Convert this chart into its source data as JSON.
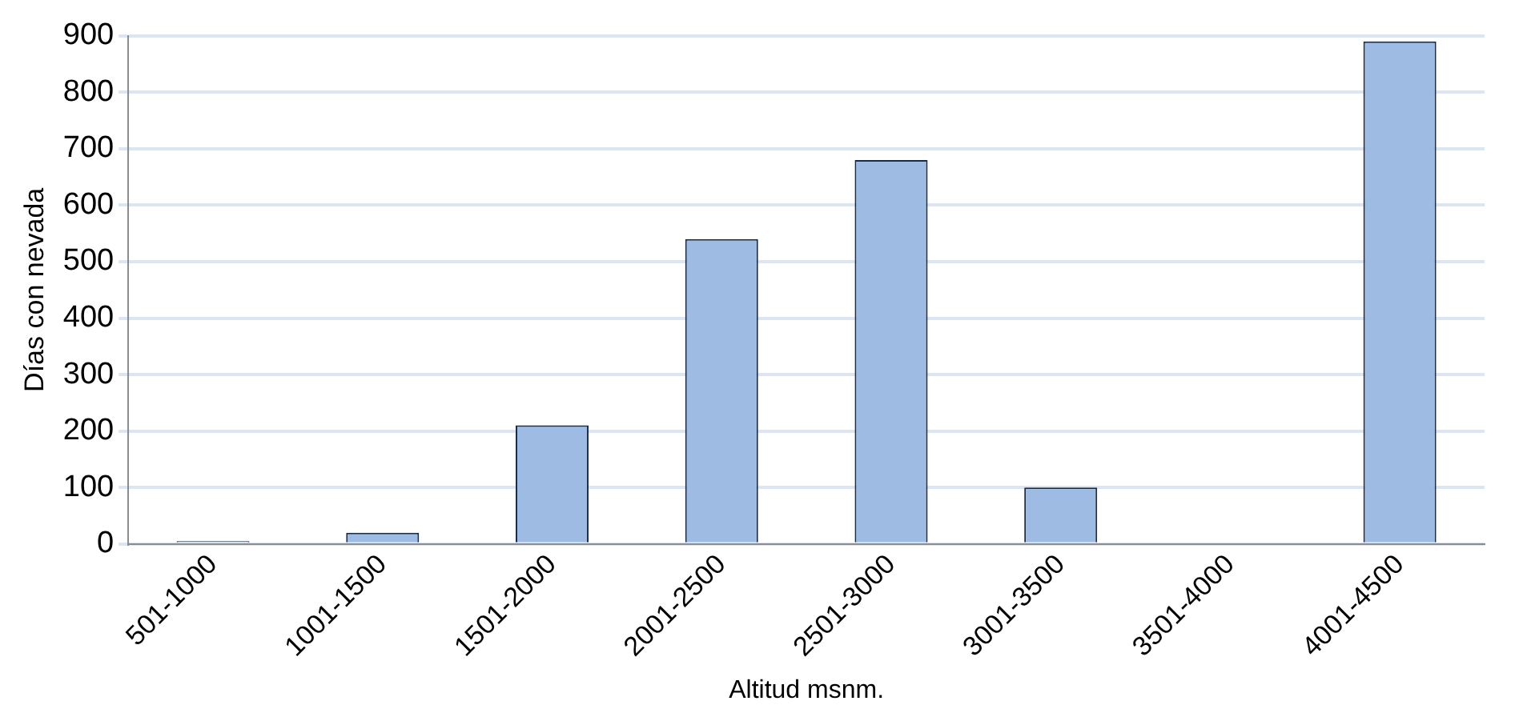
{
  "chart_data": {
    "type": "bar",
    "xlabel": "Altitud msnm.",
    "ylabel": "Días con nevada",
    "categories": [
      "501-1000",
      "1001-1500",
      "1501-2000",
      "2001-2500",
      "2501-3000",
      "3001-3500",
      "3501-4000",
      "4001-4500"
    ],
    "values": [
      5,
      20,
      210,
      540,
      680,
      100,
      0,
      890
    ],
    "color": "#9dbbe3",
    "ylim": [
      0,
      900
    ],
    "yticks": [
      0,
      100,
      200,
      300,
      400,
      500,
      600,
      700,
      800,
      900
    ],
    "grid": "y"
  }
}
